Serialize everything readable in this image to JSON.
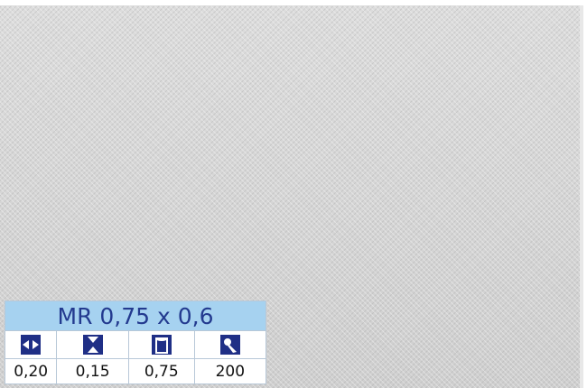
{
  "spec_table": {
    "title": "MR 0,75 x 0,6",
    "values": [
      "0,20",
      "0,15",
      "0,75",
      "200"
    ]
  }
}
